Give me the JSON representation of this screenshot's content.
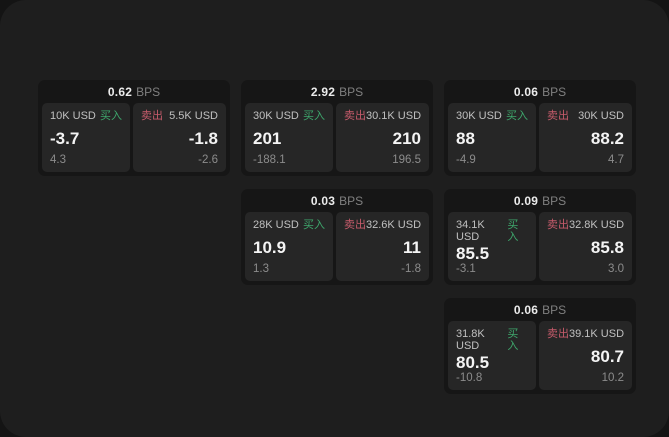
{
  "labels": {
    "buy": "买入",
    "sell": "卖出",
    "bps_unit": "BPS"
  },
  "colors": {
    "buy_green": "#3ea76c",
    "sell_red": "#c65b6b",
    "surface": "#1e1e1e",
    "card_bg": "#161616",
    "panel_bg": "#262626"
  },
  "cards": [
    {
      "col": 1,
      "row": 1,
      "bps": "0.62",
      "buy": {
        "amount": "10K USD",
        "price": "-3.7",
        "delta": "4.3"
      },
      "sell": {
        "amount": "5.5K USD",
        "price": "-1.8",
        "delta": "-2.6"
      }
    },
    {
      "col": 2,
      "row": 1,
      "bps": "2.92",
      "buy": {
        "amount": "30K USD",
        "price": "201",
        "delta": "-188.1"
      },
      "sell": {
        "amount": "30.1K USD",
        "price": "210",
        "delta": "196.5"
      }
    },
    {
      "col": 3,
      "row": 1,
      "bps": "0.06",
      "buy": {
        "amount": "30K USD",
        "price": "88",
        "delta": "-4.9"
      },
      "sell": {
        "amount": "30K USD",
        "price": "88.2",
        "delta": "4.7"
      }
    },
    {
      "col": 2,
      "row": 2,
      "bps": "0.03",
      "buy": {
        "amount": "28K USD",
        "price": "10.9",
        "delta": "1.3"
      },
      "sell": {
        "amount": "32.6K USD",
        "price": "11",
        "delta": "-1.8"
      }
    },
    {
      "col": 3,
      "row": 2,
      "bps": "0.09",
      "buy": {
        "amount": "34.1K USD",
        "price": "85.5",
        "delta": "-3.1"
      },
      "sell": {
        "amount": "32.8K USD",
        "price": "85.8",
        "delta": "3.0"
      }
    },
    {
      "col": 3,
      "row": 3,
      "bps": "0.06",
      "buy": {
        "amount": "31.8K USD",
        "price": "80.5",
        "delta": "-10.8"
      },
      "sell": {
        "amount": "39.1K USD",
        "price": "80.7",
        "delta": "10.2"
      }
    }
  ]
}
